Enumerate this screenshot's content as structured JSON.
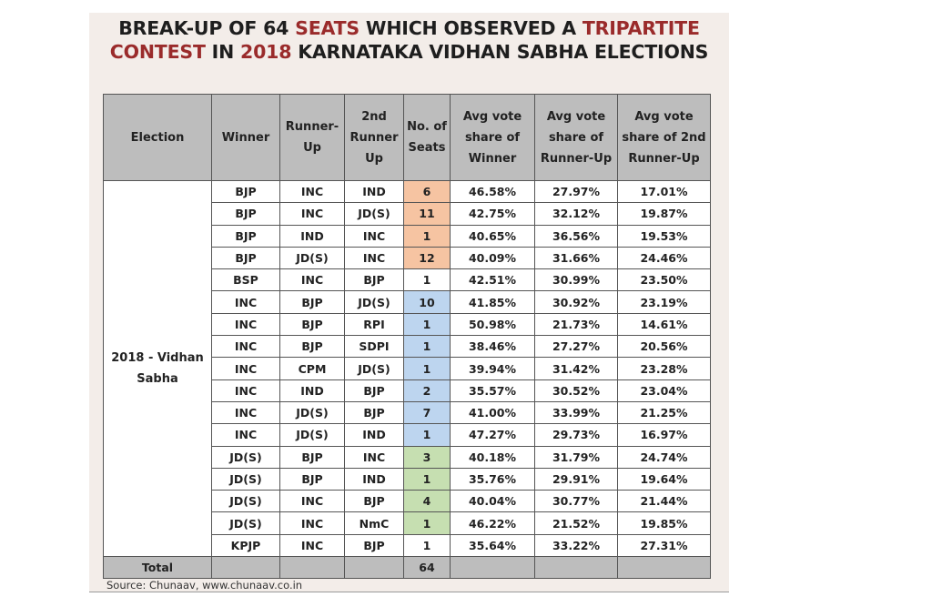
{
  "title": {
    "line1": [
      {
        "t": "BREAK-UP OF 64 ",
        "red": false
      },
      {
        "t": "SEATS",
        "red": true
      },
      {
        "t": " WHICH OBSERVED A ",
        "red": false
      },
      {
        "t": "TRIPARTITE",
        "red": true
      }
    ],
    "line2": [
      {
        "t": "CONTEST",
        "red": true
      },
      {
        "t": " IN ",
        "red": false
      },
      {
        "t": "2018",
        "red": true
      },
      {
        "t": " KARNATAKA VIDHAN SABHA ELECTIONS",
        "red": false
      }
    ]
  },
  "colors": {
    "title_red": "#9a2b2b",
    "bjp_seats": "#f6c4a2",
    "inc_seats": "#bdd5ef",
    "jds_seats": "#c6dfb1",
    "header_gray": "#bdbdbd"
  },
  "table": {
    "headers": [
      "Election",
      "Winner",
      "Runner-Up",
      "2nd Runner Up",
      "No. of Seats",
      "Avg vote share of Winner",
      "Avg vote share of Runner-Up",
      "Avg vote share of 2nd Runner-Up"
    ],
    "election": "2018 - Vidhan Sabha",
    "rows": [
      {
        "winner": "BJP",
        "runner": "INC",
        "second": "IND",
        "seats": "6",
        "w": "46.58%",
        "r": "27.97%",
        "s": "17.01%",
        "hl": "orange"
      },
      {
        "winner": "BJP",
        "runner": "INC",
        "second": "JD(S)",
        "seats": "11",
        "w": "42.75%",
        "r": "32.12%",
        "s": "19.87%",
        "hl": "orange"
      },
      {
        "winner": "BJP",
        "runner": "IND",
        "second": "INC",
        "seats": "1",
        "w": "40.65%",
        "r": "36.56%",
        "s": "19.53%",
        "hl": "orange"
      },
      {
        "winner": "BJP",
        "runner": "JD(S)",
        "second": "INC",
        "seats": "12",
        "w": "40.09%",
        "r": "31.66%",
        "s": "24.46%",
        "hl": "orange"
      },
      {
        "winner": "BSP",
        "runner": "INC",
        "second": "BJP",
        "seats": "1",
        "w": "42.51%",
        "r": "30.99%",
        "s": "23.50%",
        "hl": ""
      },
      {
        "winner": "INC",
        "runner": "BJP",
        "second": "JD(S)",
        "seats": "10",
        "w": "41.85%",
        "r": "30.92%",
        "s": "23.19%",
        "hl": "blue"
      },
      {
        "winner": "INC",
        "runner": "BJP",
        "second": "RPI",
        "seats": "1",
        "w": "50.98%",
        "r": "21.73%",
        "s": "14.61%",
        "hl": "blue"
      },
      {
        "winner": "INC",
        "runner": "BJP",
        "second": "SDPI",
        "seats": "1",
        "w": "38.46%",
        "r": "27.27%",
        "s": "20.56%",
        "hl": "blue"
      },
      {
        "winner": "INC",
        "runner": "CPM",
        "second": "JD(S)",
        "seats": "1",
        "w": "39.94%",
        "r": "31.42%",
        "s": "23.28%",
        "hl": "blue"
      },
      {
        "winner": "INC",
        "runner": "IND",
        "second": "BJP",
        "seats": "2",
        "w": "35.57%",
        "r": "30.52%",
        "s": "23.04%",
        "hl": "blue"
      },
      {
        "winner": "INC",
        "runner": "JD(S)",
        "second": "BJP",
        "seats": "7",
        "w": "41.00%",
        "r": "33.99%",
        "s": "21.25%",
        "hl": "blue"
      },
      {
        "winner": "INC",
        "runner": "JD(S)",
        "second": "IND",
        "seats": "1",
        "w": "47.27%",
        "r": "29.73%",
        "s": "16.97%",
        "hl": "blue"
      },
      {
        "winner": "JD(S)",
        "runner": "BJP",
        "second": "INC",
        "seats": "3",
        "w": "40.18%",
        "r": "31.79%",
        "s": "24.74%",
        "hl": "green"
      },
      {
        "winner": "JD(S)",
        "runner": "BJP",
        "second": "IND",
        "seats": "1",
        "w": "35.76%",
        "r": "29.91%",
        "s": "19.64%",
        "hl": "green"
      },
      {
        "winner": "JD(S)",
        "runner": "INC",
        "second": "BJP",
        "seats": "4",
        "w": "40.04%",
        "r": "30.77%",
        "s": "21.44%",
        "hl": "green"
      },
      {
        "winner": "JD(S)",
        "runner": "INC",
        "second": "NmC",
        "seats": "1",
        "w": "46.22%",
        "r": "21.52%",
        "s": "19.85%",
        "hl": "green"
      },
      {
        "winner": "KPJP",
        "runner": "INC",
        "second": "BJP",
        "seats": "1",
        "w": "35.64%",
        "r": "33.22%",
        "s": "27.31%",
        "hl": ""
      }
    ],
    "total_label": "Total",
    "total_seats": "64"
  },
  "source": "Source: Chunaav, www.chunaav.co.in"
}
